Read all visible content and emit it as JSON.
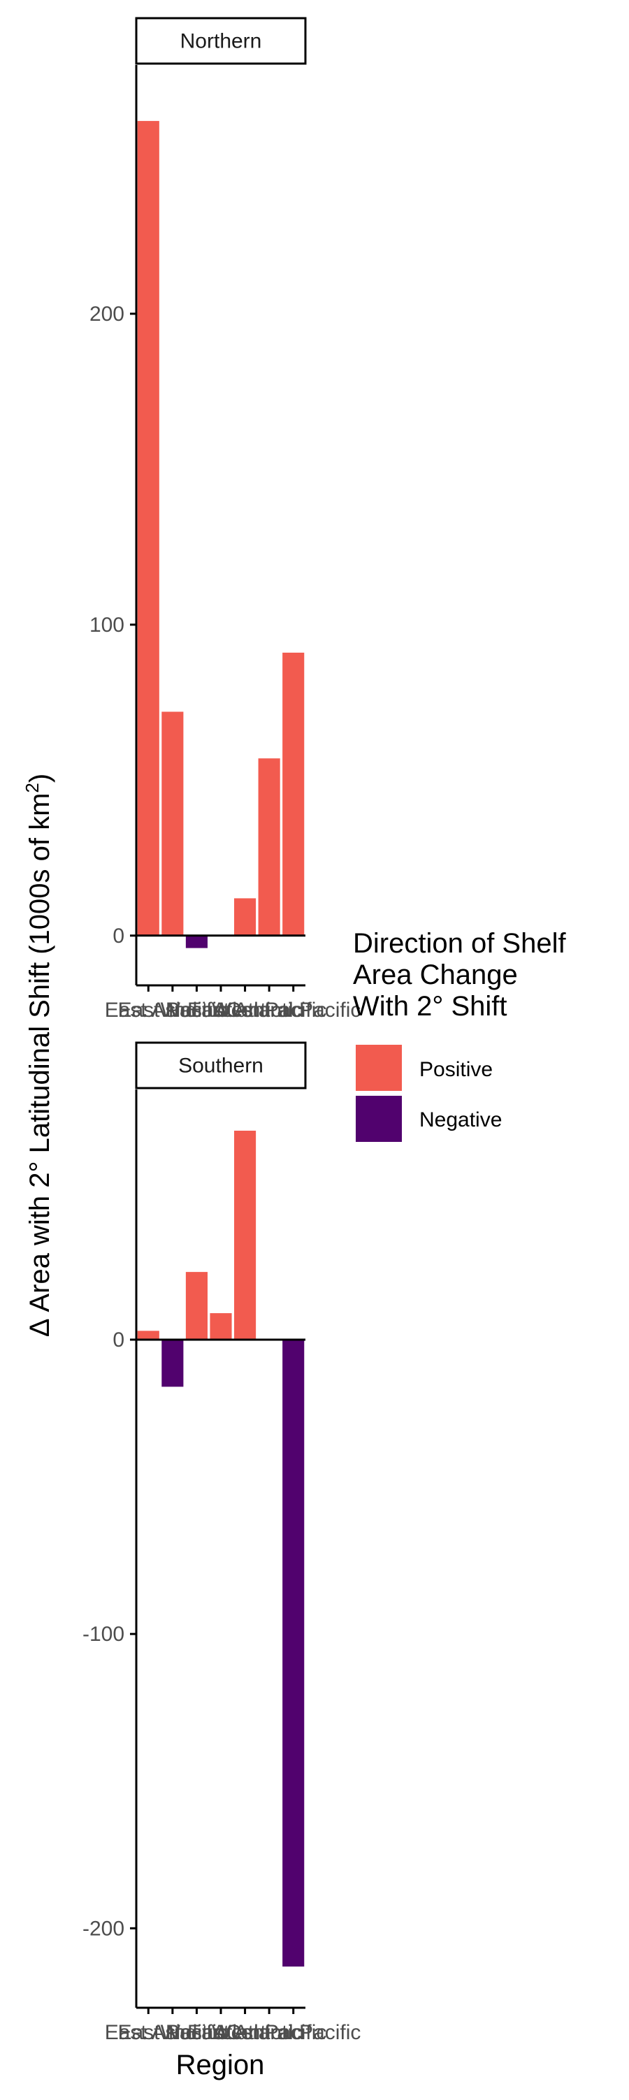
{
  "chart_data": {
    "type": "bar",
    "title": "",
    "xlabel": "Region",
    "ylabel_main": "Δ Area with 2° Latitudinal Shift (1000s of km",
    "ylabel_superscript": "2",
    "ylabel_close": ")",
    "categories": [
      "East Asia",
      "East Pacific",
      "Indian",
      "West Atlantic",
      "East Atlantic",
      "West Pacific",
      "Central Pacific"
    ],
    "legend": {
      "title_lines": [
        "Direction of Shelf",
        "Area Change",
        "With 2° Shift"
      ],
      "entries": [
        {
          "label": "Positive",
          "color": "#F25B4F"
        },
        {
          "label": "Negative",
          "color": "#51026E"
        }
      ],
      "position": "right"
    },
    "facets": [
      {
        "name": "Northern",
        "values": [
          262,
          72,
          -4,
          0,
          12,
          57,
          91
        ],
        "ylim": [
          -16,
          280
        ],
        "yticks": [
          0,
          100,
          200
        ]
      },
      {
        "name": "Southern",
        "values": [
          3,
          -16,
          23,
          9,
          71,
          0,
          -213
        ],
        "ylim": [
          -227,
          85
        ],
        "yticks": [
          -200,
          -100,
          0
        ]
      }
    ],
    "grid": false
  }
}
